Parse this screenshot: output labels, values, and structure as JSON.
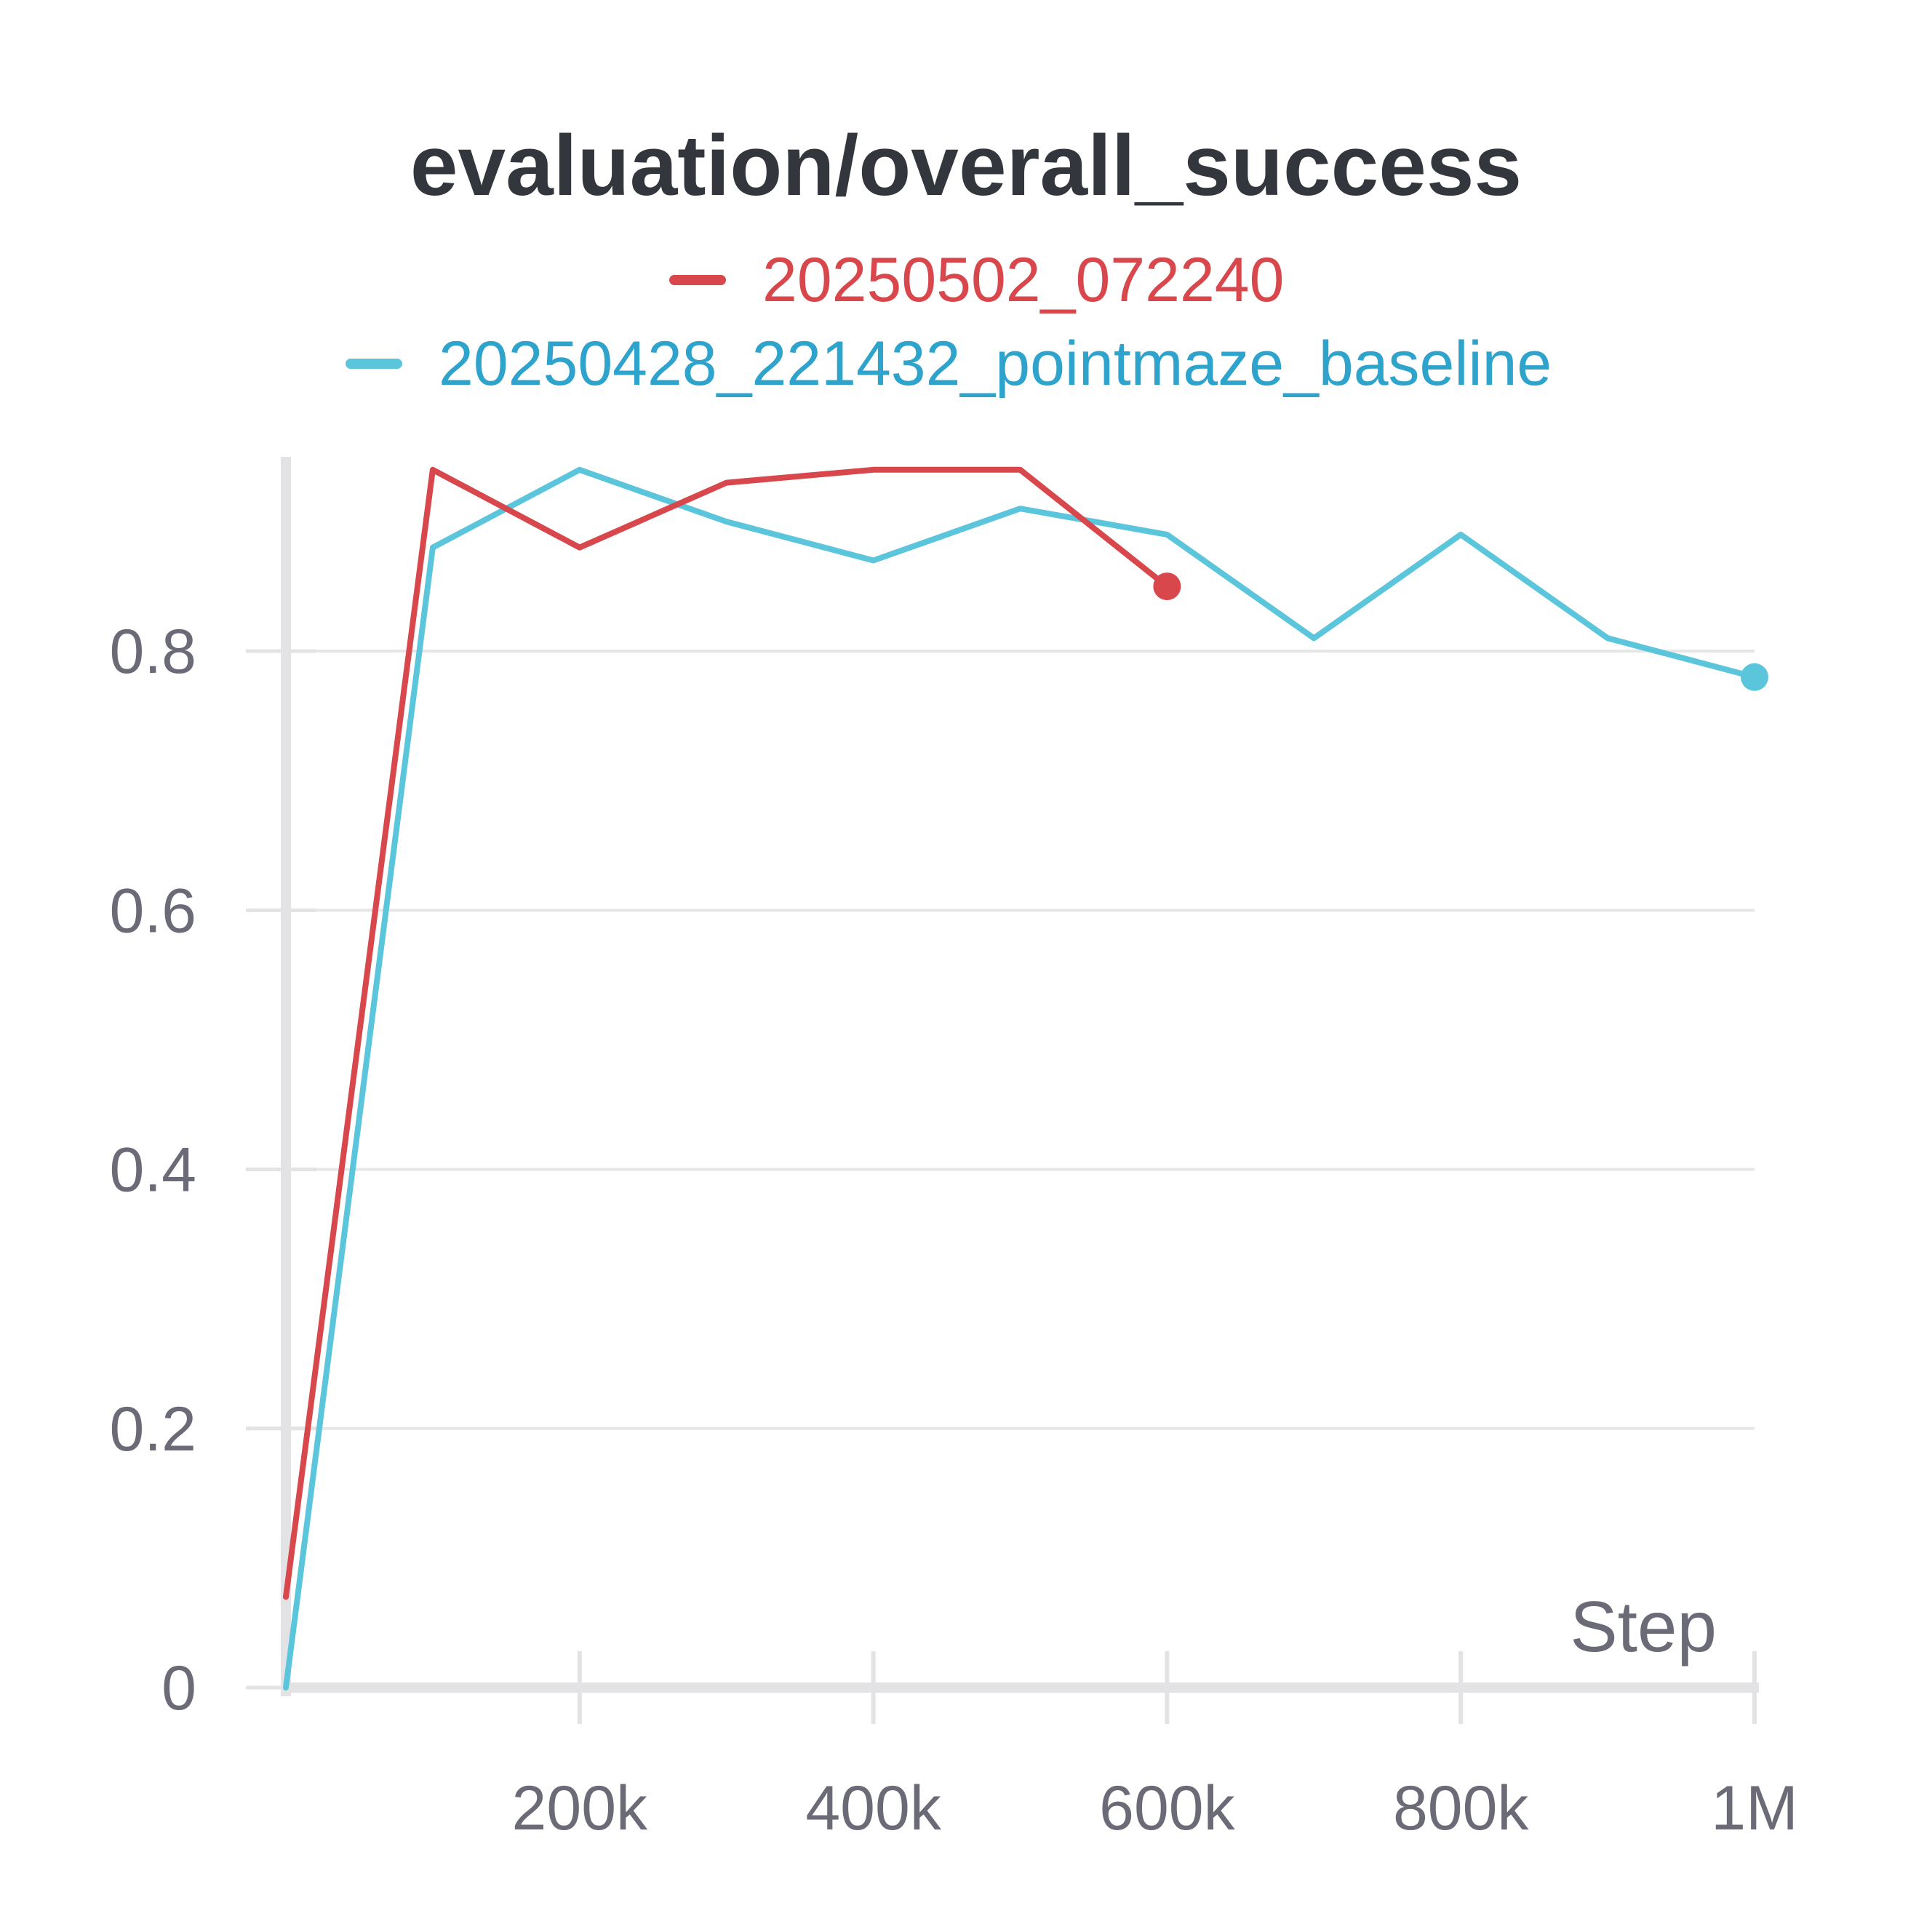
{
  "chart_data": {
    "type": "line",
    "title": "evaluation/overall_success",
    "xlabel": "Step",
    "ylabel": "",
    "xlim": [
      0,
      1000000
    ],
    "ylim": [
      0,
      0.95
    ],
    "yticks": [
      0,
      0.2,
      0.4,
      0.6,
      0.8
    ],
    "ytick_labels": [
      "0",
      "0.2",
      "0.4",
      "0.6",
      "0.8"
    ],
    "xticks": [
      200000,
      400000,
      600000,
      800000,
      1000000
    ],
    "xtick_labels": [
      "200k",
      "400k",
      "600k",
      "800k",
      "1M"
    ],
    "grid": true,
    "legend_position": "top-center",
    "series": [
      {
        "name": "20250502_072240",
        "color": "#d8474b",
        "x": [
          0,
          100000,
          200000,
          300000,
          400000,
          500000,
          600000
        ],
        "y": [
          0.07,
          0.94,
          0.88,
          0.93,
          0.94,
          0.94,
          0.85
        ]
      },
      {
        "name": "20250428_221432_pointmaze_baseline",
        "color": "#5bc5db",
        "x": [
          0,
          100000,
          200000,
          300000,
          400000,
          500000,
          600000,
          700000,
          800000,
          900000,
          1000000
        ],
        "y": [
          0.0,
          0.88,
          0.94,
          0.9,
          0.87,
          0.91,
          0.89,
          0.81,
          0.89,
          0.81,
          0.78
        ]
      }
    ]
  },
  "legend_text_colors": [
    "#d8474b",
    "#2ea3cc"
  ]
}
